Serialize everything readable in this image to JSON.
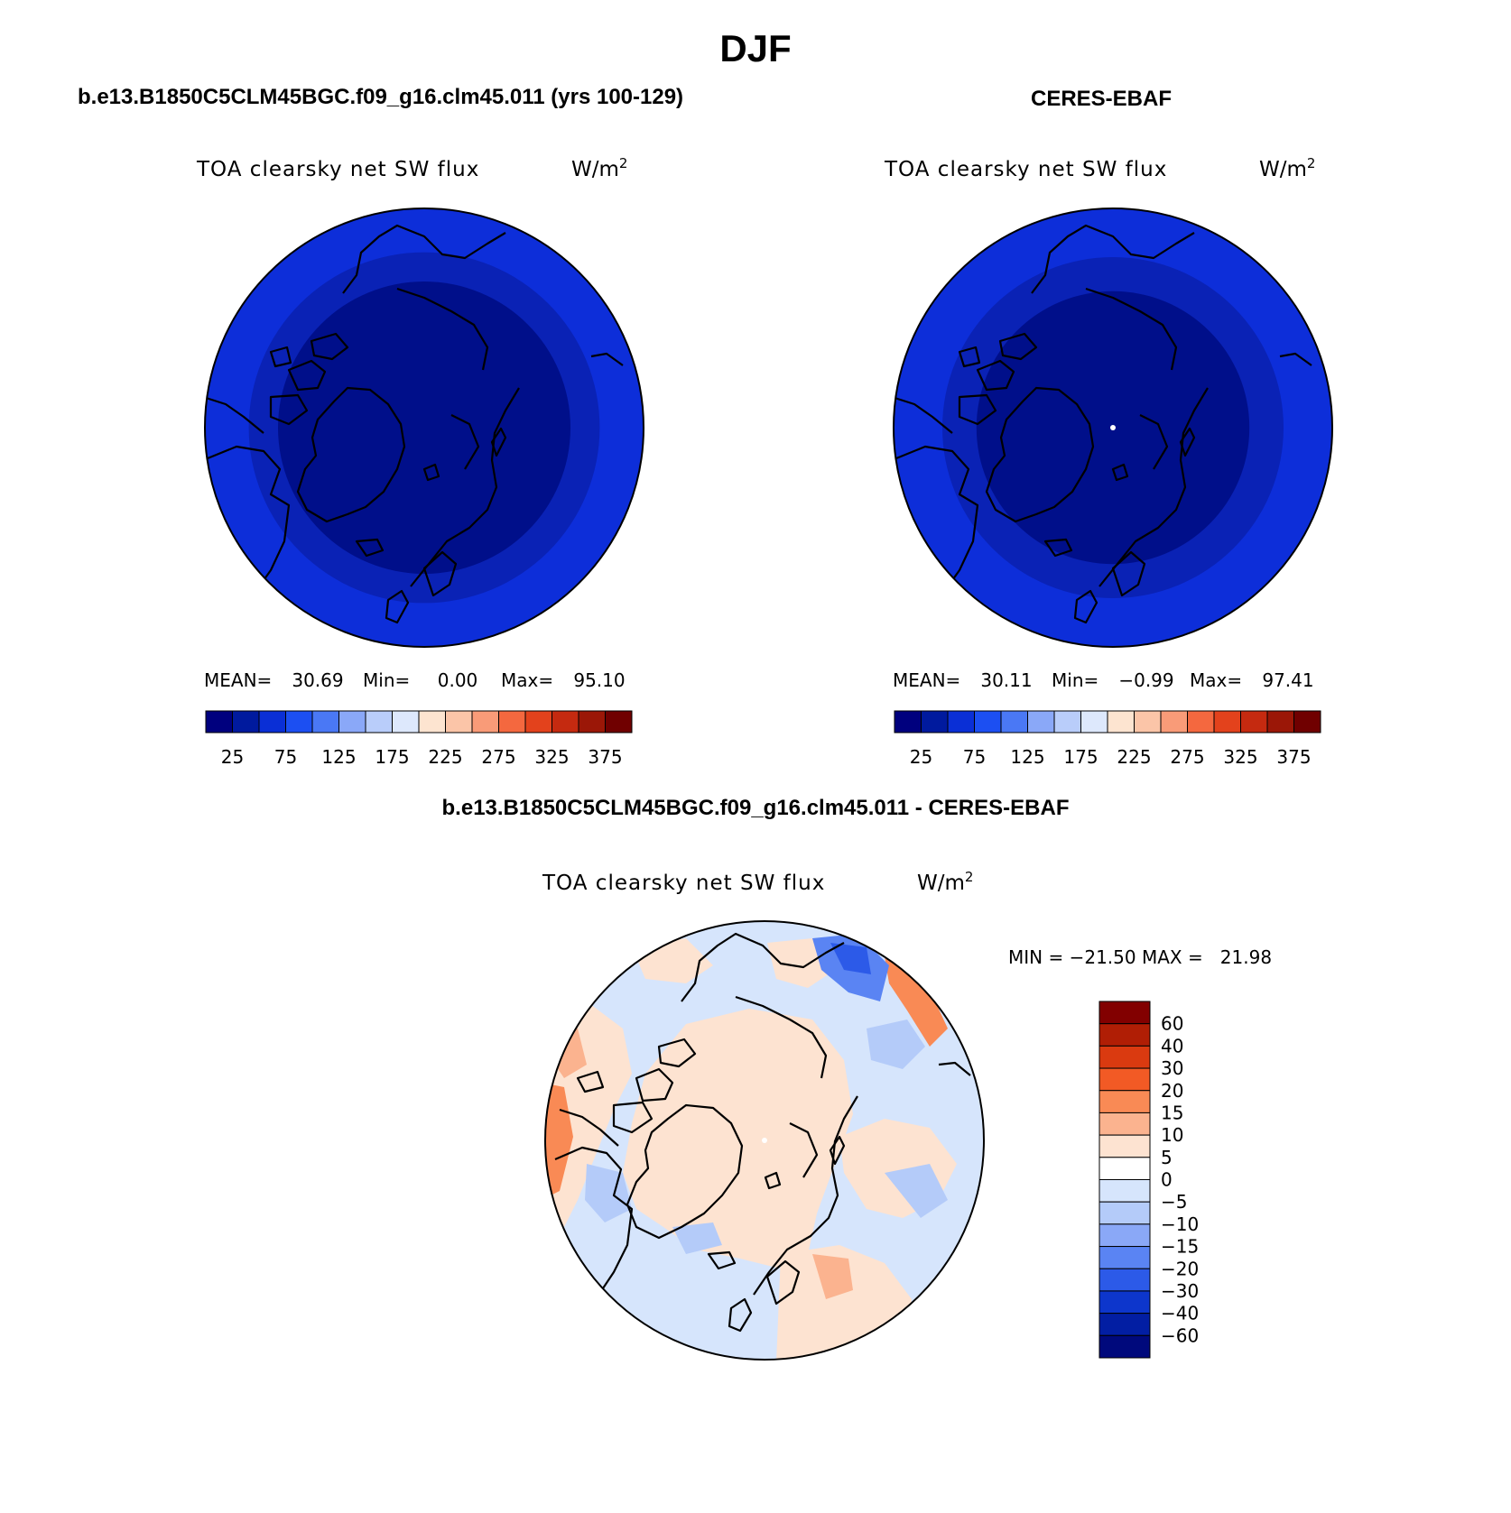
{
  "page": {
    "title": "DJF"
  },
  "panels": [
    {
      "header": "b.e13.B1850C5CLM45BGC.f09_g16.clm45.011 (yrs 100-129)",
      "variable": "TOA clearsky net SW flux",
      "units": "W/m",
      "units_exp": "2",
      "stats": {
        "mean_label": "MEAN=",
        "mean": "30.69",
        "min_label": "Min=",
        "min": "0.00",
        "max_label": "Max=",
        "max": "95.10"
      },
      "rings": [
        {
          "color": "#0d2ed9",
          "lat": 0
        },
        {
          "color": "#0a22b5",
          "lat": 18
        },
        {
          "color": "#000f8a",
          "lat": 30
        }
      ]
    },
    {
      "header": "CERES-EBAF",
      "variable": "TOA clearsky net SW flux",
      "units": "W/m",
      "units_exp": "2",
      "stats": {
        "mean_label": "MEAN=",
        "mean": "30.11",
        "min_label": "Min=",
        "min": "−0.99",
        "max_label": "Max=",
        "max": "97.41"
      },
      "rings": [
        {
          "color": "#0d2ed9",
          "lat": 0
        },
        {
          "color": "#0a22b5",
          "lat": 20
        },
        {
          "color": "#000f8a",
          "lat": 34
        }
      ]
    }
  ],
  "abs_colorbar": {
    "colors": [
      "#00007e",
      "#001a9e",
      "#0a2fd6",
      "#1c4ff2",
      "#4a78f5",
      "#8aa8f8",
      "#b9cdfa",
      "#dde8fc",
      "#fde4d0",
      "#fbc5a8",
      "#f99b78",
      "#f4683f",
      "#e3421c",
      "#c52a10",
      "#9b1707",
      "#700000"
    ],
    "tick_labels": [
      "25",
      "75",
      "125",
      "175",
      "225",
      "275",
      "325",
      "375"
    ]
  },
  "diff_panel": {
    "header": "b.e13.B1850C5CLM45BGC.f09_g16.clm45.011 - CERES-EBAF",
    "variable": "TOA clearsky net SW flux",
    "units": "W/m",
    "units_exp": "2",
    "stats_text": "MIN = −21.50 MAX =   21.98"
  },
  "diff_colorbar": {
    "colors_top_to_bottom": [
      "#820000",
      "#b01e05",
      "#da3a10",
      "#f25a25",
      "#f98a55",
      "#fbb38f",
      "#fde3d1",
      "#ffffff",
      "#d6e5fc",
      "#b4cbf9",
      "#8aa8f7",
      "#5a84f3",
      "#2c5ae8",
      "#0d36cc",
      "#021ea3",
      "#00097c"
    ],
    "labels": [
      "60",
      "40",
      "30",
      "20",
      "15",
      "10",
      "5",
      "0",
      "−5",
      "−10",
      "−15",
      "−20",
      "−30",
      "−40",
      "−60"
    ]
  }
}
